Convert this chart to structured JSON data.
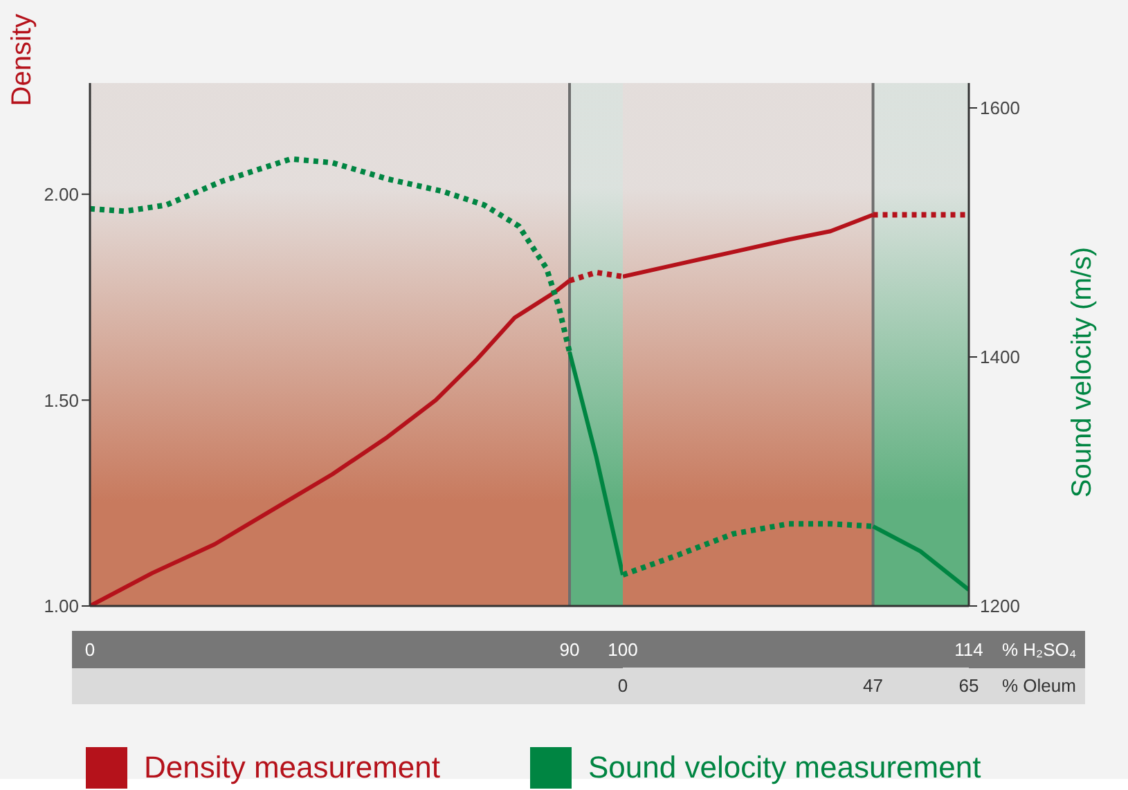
{
  "chart_data": [
    {
      "type": "line",
      "ylabel": "Density",
      "xlim": [
        0,
        100
      ],
      "xticks": [
        0,
        90
      ],
      "ylim": [
        1,
        2.27
      ],
      "yticks": [
        {
          "value": 1,
          "label": "1.00"
        },
        {
          "value": 1.5,
          "label": "1.50"
        },
        {
          "value": 2,
          "label": "2.00"
        }
      ],
      "y2lim": [
        1200,
        1620
      ],
      "legend": "bottom",
      "marker": "none",
      "bands": [
        {
          "axis": "x",
          "from": 0,
          "to": 90,
          "color": "#c87a5e"
        },
        {
          "axis": "x",
          "from": 90,
          "to": 100,
          "color": "#5fb07f"
        }
      ],
      "ref_lines": [
        {
          "axis": "x",
          "value": 90,
          "color": "#6e6e6e"
        }
      ],
      "series": [
        {
          "name": "Density measurement",
          "color": "#b5121b",
          "line_style": "solid",
          "x": [
            0,
            11.7,
            23.4,
            35.1,
            45.5,
            55.8,
            64.9,
            72.7,
            79.7,
            87.0,
            90
          ],
          "values": [
            1.0,
            1.08,
            1.15,
            1.24,
            1.32,
            1.41,
            1.5,
            1.6,
            1.7,
            1.76,
            1.79
          ]
        },
        {
          "color": "#b5121b",
          "line_style": "dotted",
          "x": [
            90,
            95,
            100
          ],
          "values": [
            1.79,
            1.81,
            1.8
          ]
        },
        {
          "name": "Sound velocity measurement",
          "color": "#008542",
          "axis": "y2",
          "line_style": "dotted",
          "x": [
            0,
            6.5,
            14.3,
            24.7,
            37.7,
            45.5,
            55.8,
            66.2,
            74.0,
            80.5,
            85.7,
            88.0,
            90
          ],
          "values": [
            1519,
            1517,
            1522,
            1541,
            1559,
            1556,
            1543,
            1533,
            1522,
            1505,
            1471,
            1440,
            1404
          ]
        },
        {
          "color": "#008542",
          "axis": "y2",
          "line_style": "solid",
          "x": [
            90,
            95,
            100
          ],
          "values": [
            1404,
            1320,
            1225
          ]
        }
      ]
    },
    {
      "type": "line",
      "xlabel": "% Oleum",
      "x2label": "% H₂SO₄",
      "y2label": "Sound velocity (m/s)",
      "xlim": [
        0,
        65
      ],
      "xticks": [
        0,
        47,
        65
      ],
      "x2lim": [
        100,
        114
      ],
      "x2ticks": [
        100,
        114
      ],
      "ylim": [
        1,
        2.27
      ],
      "y2lim": [
        1200,
        1620
      ],
      "y2ticks": [
        1200,
        1400,
        1600
      ],
      "marker": "none",
      "bands": [
        {
          "axis": "x",
          "from": 0,
          "to": 47,
          "color": "#c87a5e"
        },
        {
          "axis": "x",
          "from": 47,
          "to": 65,
          "color": "#5fb07f"
        }
      ],
      "ref_lines": [
        {
          "axis": "x",
          "value": 47,
          "color": "#6e6e6e"
        }
      ],
      "series": [
        {
          "color": "#b5121b",
          "line_style": "solid",
          "x": [
            0,
            10.4,
            20.8,
            31.2,
            39.0,
            47
          ],
          "values": [
            1.8,
            1.83,
            1.86,
            1.89,
            1.91,
            1.95
          ]
        },
        {
          "color": "#b5121b",
          "line_style": "dotted",
          "x": [
            47,
            54.6,
            65
          ],
          "values": [
            1.95,
            1.95,
            1.95
          ]
        },
        {
          "color": "#008542",
          "axis": "y2",
          "line_style": "dotted",
          "x": [
            0,
            10.4,
            20.8,
            31.2,
            39.0,
            47
          ],
          "values": [
            1225,
            1241,
            1258,
            1266,
            1266,
            1264
          ]
        },
        {
          "color": "#008542",
          "axis": "y2",
          "line_style": "solid",
          "x": [
            47,
            55.9,
            65
          ],
          "values": [
            1264,
            1244,
            1213
          ]
        }
      ]
    }
  ]
}
